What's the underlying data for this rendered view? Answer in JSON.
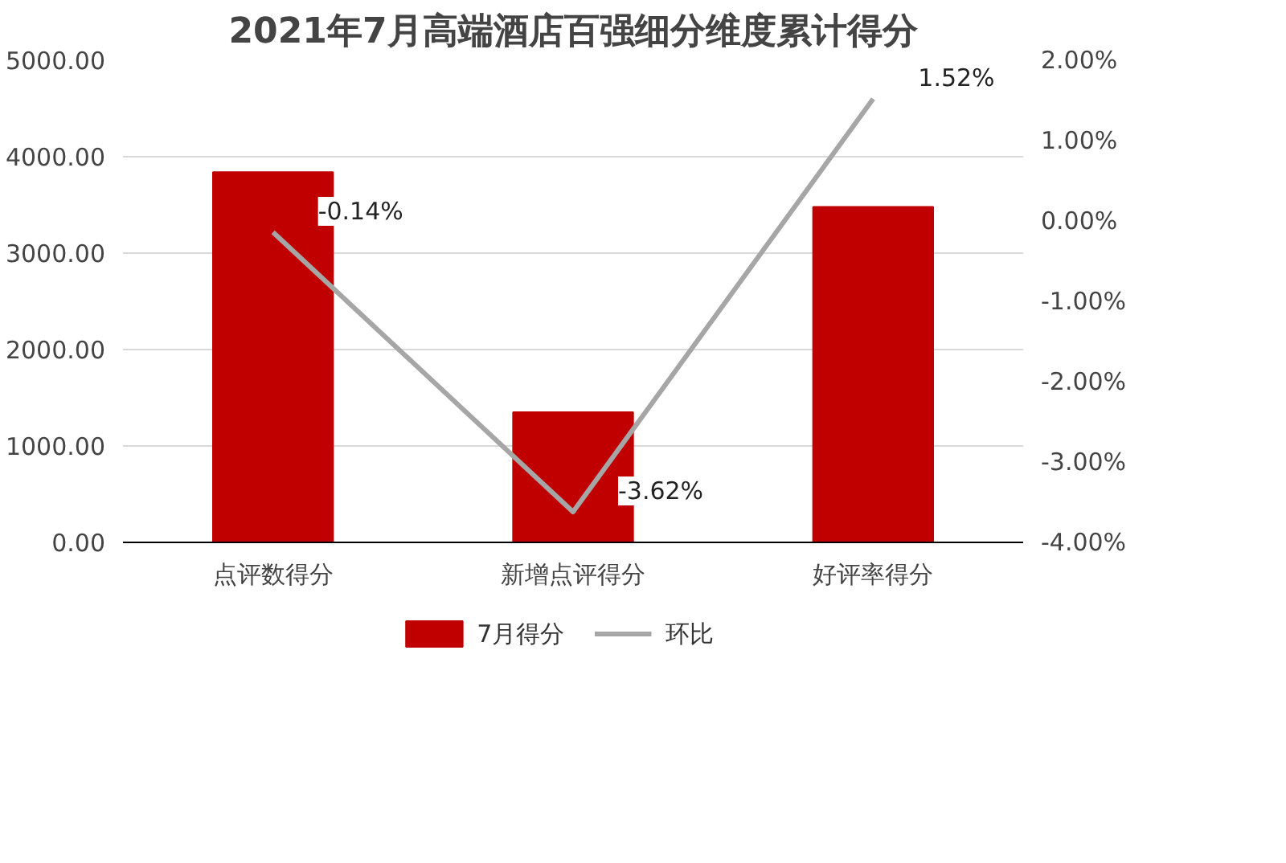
{
  "chart_data": {
    "type": "bar",
    "title": "2021年7月高端酒店百强细分维度累计得分",
    "categories": [
      "点评数得分",
      "新增点评得分",
      "好评率得分"
    ],
    "series": [
      {
        "name": "7月得分",
        "color": "#c00000",
        "values": [
          3840,
          1350,
          3480
        ]
      },
      {
        "name": "环比",
        "type": "line",
        "color": "#a6a6a6",
        "axis": "y2",
        "values": [
          -0.14,
          -3.62,
          1.52
        ],
        "value_labels": [
          "-0.14%",
          "-3.62%",
          "1.52%"
        ]
      }
    ],
    "ylim": [
      0,
      5000
    ],
    "yticks": [
      {
        "value": 0,
        "label": "0.00"
      },
      {
        "value": 1000,
        "label": "1000.00"
      },
      {
        "value": 2000,
        "label": "2000.00"
      },
      {
        "value": 3000,
        "label": "3000.00"
      },
      {
        "value": 4000,
        "label": "4000.00"
      },
      {
        "value": 5000,
        "label": "5000.00"
      }
    ],
    "y2lim": [
      -4,
      2
    ],
    "y2ticks": [
      {
        "value": -4,
        "label": "-4.00%"
      },
      {
        "value": -3,
        "label": "-3.00%"
      },
      {
        "value": -2,
        "label": "-2.00%"
      },
      {
        "value": -1,
        "label": "-1.00%"
      },
      {
        "value": 0,
        "label": "0.00%"
      },
      {
        "value": 1,
        "label": "1.00%"
      },
      {
        "value": 2,
        "label": "2.00%"
      }
    ],
    "grid": "y",
    "legend": "bottom",
    "marker": "none",
    "line_style": "solid"
  }
}
